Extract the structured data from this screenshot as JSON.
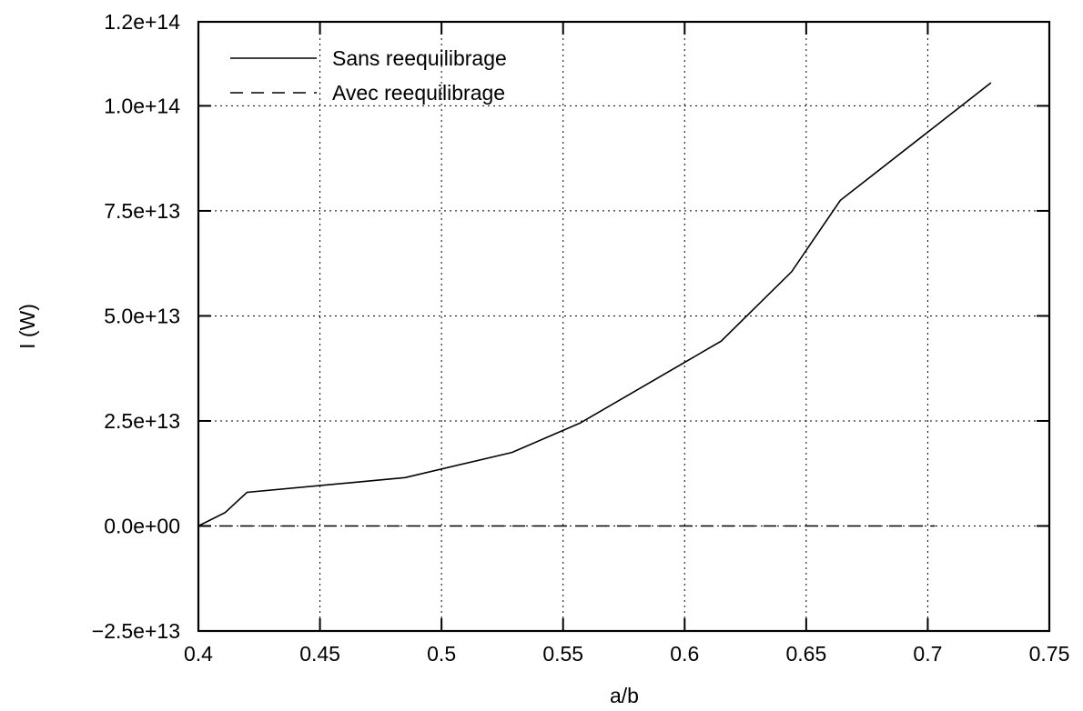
{
  "chart_data": {
    "type": "line",
    "xlabel": "a/b",
    "ylabel": "I (W)",
    "xlim": [
      0.4,
      0.75
    ],
    "ylim": [
      -25000000000000.0,
      120000000000000.0
    ],
    "x_ticks": [
      0.4,
      0.45,
      0.5,
      0.55,
      0.6,
      0.65,
      0.7,
      0.75
    ],
    "x_tick_labels": [
      "0.4",
      "0.45",
      "0.5",
      "0.55",
      "0.6",
      "0.65",
      "0.7",
      "0.75"
    ],
    "y_ticks": [
      -25000000000000.0,
      0,
      25000000000000.0,
      50000000000000.0,
      75000000000000.0,
      100000000000000.0,
      120000000000000.0
    ],
    "y_tick_labels": [
      "−2.5e+13",
      "0.0e+00",
      "2.5e+13",
      "5.0e+13",
      "7.5e+13",
      "1.0e+14",
      "1.2e+14"
    ],
    "grid": true,
    "legend_position": "top-left",
    "series": [
      {
        "name": "Sans reequilibrage",
        "style": "solid",
        "color": "#000000",
        "x": [
          0.4,
          0.411,
          0.42,
          0.485,
          0.529,
          0.557,
          0.615,
          0.644,
          0.664,
          0.726
        ],
        "y": [
          0,
          3200000000000.0,
          8000000000000.0,
          11500000000000.0,
          17500000000000.0,
          24500000000000.0,
          44000000000000.0,
          60500000000000.0,
          77500000000000.0,
          105500000000000.0
        ]
      },
      {
        "name": "Avec reequilibrage",
        "style": "dashed",
        "color": "#000000",
        "x": [
          0.4,
          0.45,
          0.5,
          0.55,
          0.6,
          0.65,
          0.703
        ],
        "y": [
          0,
          0,
          0,
          0,
          0,
          0,
          0
        ]
      }
    ]
  }
}
